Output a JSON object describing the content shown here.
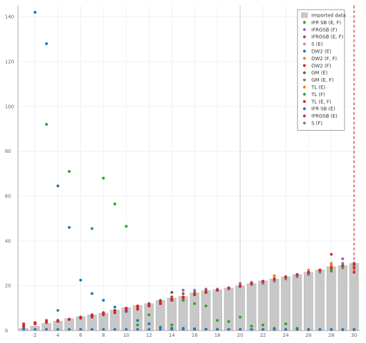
{
  "chart_data": {
    "type": "bar",
    "title": "",
    "xlabel": "",
    "ylabel": "",
    "xlim": [
      0.5,
      30.5
    ],
    "ylim": [
      0,
      145
    ],
    "x_ticks": [
      2,
      4,
      6,
      8,
      10,
      12,
      14,
      16,
      18,
      20,
      22,
      24,
      26,
      28,
      30
    ],
    "y_ticks": [
      0,
      20,
      40,
      60,
      80,
      100,
      120,
      140
    ],
    "grid": true,
    "legend_position": "top-right",
    "reference_lines": [
      {
        "x": 20,
        "style": "solid",
        "color": "#c8c8c8"
      },
      {
        "x": 30,
        "style": "dashed",
        "color": "#cc0000"
      }
    ],
    "x": [
      1,
      2,
      3,
      4,
      5,
      6,
      7,
      8,
      9,
      10,
      11,
      12,
      13,
      14,
      15,
      16,
      17,
      18,
      19,
      20,
      21,
      22,
      23,
      24,
      25,
      26,
      27,
      28,
      29,
      30
    ],
    "bars": {
      "name": "Imported data",
      "color": "#c8c8c8",
      "values": [
        1.0,
        2.0,
        3.2,
        4.2,
        5.3,
        6.2,
        7.0,
        7.8,
        9.2,
        10.2,
        11.2,
        12.0,
        13.5,
        14.5,
        15.2,
        16.8,
        17.8,
        18.2,
        19.0,
        20.0,
        21.0,
        22.2,
        23.0,
        24.0,
        25.0,
        26.0,
        27.0,
        28.5,
        29.0,
        30.0
      ]
    },
    "series": [
      {
        "name": "IFR SB (E, F)",
        "color": "#2ca02c",
        "values": [
          null,
          null,
          92,
          9,
          71,
          null,
          45.5,
          68,
          56.5,
          46.5,
          null,
          null,
          null,
          null,
          null,
          null,
          null,
          null,
          null,
          null,
          null,
          null,
          null,
          null,
          null,
          null,
          null,
          null,
          null,
          null
        ]
      },
      {
        "name": "IFRGSB (F)",
        "color": "#9467bd",
        "values": [
          2,
          3.5,
          4,
          4.5,
          5,
          6,
          7,
          8,
          9,
          10,
          11,
          12,
          13,
          17,
          18,
          18,
          18.5,
          18.5,
          19,
          21,
          21.5,
          22,
          23,
          24,
          25,
          26,
          27,
          29,
          32,
          29
        ]
      },
      {
        "name": "IFRGSB (E, F)",
        "color": "#8c564b",
        "values": [
          1.5,
          3,
          3.5,
          4,
          5,
          5.5,
          6.5,
          7.5,
          8.5,
          9.5,
          10.5,
          11.5,
          12.5,
          15,
          16.5,
          17,
          18,
          18,
          19,
          20,
          21,
          22,
          23,
          24,
          25,
          26,
          27,
          28,
          29,
          29.5
        ]
      },
      {
        "name": "DW2 (E)",
        "color": "#1f77b4",
        "values": [
          1,
          142,
          128,
          64.5,
          46,
          22.5,
          16.5,
          13.5,
          10.5,
          8.5,
          4.5,
          3,
          1.5,
          1,
          1,
          0.8,
          0.6,
          0.5,
          0.5,
          0.5,
          0.4,
          0.4,
          0.4,
          0.4,
          0.4,
          0.3,
          0.3,
          0.3,
          0.3,
          0.3
        ]
      },
      {
        "name": "DW2 (F, F)",
        "color": "#ff7f0e",
        "values": [
          null,
          null,
          null,
          null,
          null,
          null,
          null,
          null,
          null,
          null,
          null,
          null,
          null,
          null,
          null,
          null,
          null,
          null,
          null,
          null,
          null,
          null,
          24.5,
          null,
          null,
          27,
          null,
          30,
          29,
          27
        ]
      },
      {
        "name": "DW2 (F)",
        "color": "#d62728",
        "values": [
          2.5,
          3,
          4,
          4.5,
          5,
          6,
          6.5,
          7.5,
          8,
          9,
          9.5,
          11,
          12,
          13.5,
          14.5,
          16,
          17,
          18,
          19,
          19.5,
          20.5,
          21.5,
          22.5,
          23.5,
          24.5,
          25.5,
          26.5,
          34,
          28,
          26
        ]
      },
      {
        "name": "GM (E)",
        "color": "#8c564b",
        "values": [
          null,
          null,
          null,
          null,
          null,
          null,
          null,
          null,
          null,
          null,
          null,
          null,
          null,
          17,
          null,
          null,
          null,
          null,
          null,
          null,
          null,
          null,
          null,
          null,
          null,
          null,
          null,
          null,
          null,
          null
        ]
      },
      {
        "name": "GM (E, F)",
        "color": "#7f7f7f",
        "values": [
          null,
          null,
          null,
          null,
          null,
          null,
          null,
          null,
          null,
          null,
          null,
          null,
          13,
          14,
          15,
          16,
          17,
          18,
          18.5,
          19.5,
          20.5,
          21,
          22,
          23,
          24,
          25,
          26,
          27,
          28,
          null
        ]
      },
      {
        "name": "TL (E)",
        "color": "#ff7f0e",
        "values": [
          null,
          null,
          null,
          null,
          null,
          null,
          null,
          null,
          null,
          null,
          null,
          null,
          null,
          null,
          null,
          null,
          null,
          null,
          null,
          null,
          null,
          null,
          24,
          null,
          null,
          null,
          null,
          28.5,
          null,
          null
        ]
      },
      {
        "name": "TL (F)",
        "color": "#2ca02c",
        "values": [
          null,
          null,
          null,
          null,
          null,
          null,
          null,
          null,
          null,
          null,
          2.5,
          7,
          13.5,
          2.5,
          13.5,
          12,
          11,
          4.5,
          4,
          6,
          2,
          2.5,
          1,
          3,
          1,
          null,
          null,
          26.5,
          null,
          null
        ]
      },
      {
        "name": "TL (E, F)",
        "color": "#d62728",
        "values": [
          2,
          3,
          4,
          4.5,
          5,
          5.5,
          6,
          7,
          8,
          9,
          10,
          11,
          12,
          13.5,
          15,
          16,
          17,
          18,
          19,
          20,
          21,
          22,
          23,
          24,
          25,
          26,
          27,
          28,
          29,
          28
        ]
      },
      {
        "name": "IFR SB (E)",
        "color": "#1f77b4",
        "values": [
          0.5,
          0.5,
          0.5,
          0.5,
          0.5,
          0.5,
          0.5,
          0.5,
          0.5,
          0.5,
          0.5,
          0.5,
          0.5,
          0.5,
          0.5,
          0.5,
          0.5,
          0.5,
          0.5,
          0.5,
          0.5,
          0.5,
          0.5,
          0.5,
          0.5,
          0.5,
          0.5,
          0.5,
          0.5,
          0.5
        ]
      },
      {
        "name": "IFRGSB (E)",
        "color": "#d62728",
        "values": [
          3,
          3.5,
          4.5,
          4.5,
          5,
          6,
          7,
          8,
          9,
          10,
          11,
          12,
          13,
          14,
          15,
          16,
          17,
          18,
          19,
          20,
          21,
          22,
          23,
          24,
          25,
          26,
          27,
          28,
          29,
          30
        ]
      },
      {
        "name": "S (F)",
        "color": "#7f7f7f",
        "values": [
          null,
          null,
          null,
          null,
          null,
          null,
          null,
          null,
          null,
          null,
          null,
          null,
          null,
          null,
          null,
          null,
          null,
          null,
          null,
          null,
          null,
          null,
          null,
          null,
          null,
          null,
          null,
          null,
          30,
          null
        ]
      }
    ],
    "legend": [
      {
        "label": "Imported data",
        "kind": "bar",
        "color": "#c8c8c8"
      },
      {
        "label": "IFR SB (E, F)",
        "kind": "marker",
        "color": "#2ca02c"
      },
      {
        "label": "IFRGSB (F)",
        "kind": "marker",
        "color": "#9467bd"
      },
      {
        "label": "IFRGSB (E, F)",
        "kind": "marker",
        "color": "#8c564b"
      },
      {
        "label": "S (E)",
        "kind": "marker",
        "color": "#e377c2"
      },
      {
        "label": "DW2 (E)",
        "kind": "marker",
        "color": "#1f77b4"
      },
      {
        "label": "DW2 (F, F)",
        "kind": "marker",
        "color": "#ff7f0e"
      },
      {
        "label": "DW2 (F)",
        "kind": "marker",
        "color": "#d62728"
      },
      {
        "label": "GM (E)",
        "kind": "marker",
        "color": "#8c564b"
      },
      {
        "label": "GM (E, F)",
        "kind": "marker",
        "color": "#7f7f7f"
      },
      {
        "label": "TL (E)",
        "kind": "marker",
        "color": "#ff7f0e"
      },
      {
        "label": "TL (F)",
        "kind": "marker",
        "color": "#2ca02c"
      },
      {
        "label": "TL (E, F)",
        "kind": "marker",
        "color": "#d62728"
      },
      {
        "label": "IFR SB (E)",
        "kind": "marker",
        "color": "#1f77b4"
      },
      {
        "label": "IFRGSB (E)",
        "kind": "marker",
        "color": "#d62728"
      },
      {
        "label": "S (F)",
        "kind": "marker",
        "color": "#7f7f7f"
      }
    ]
  }
}
